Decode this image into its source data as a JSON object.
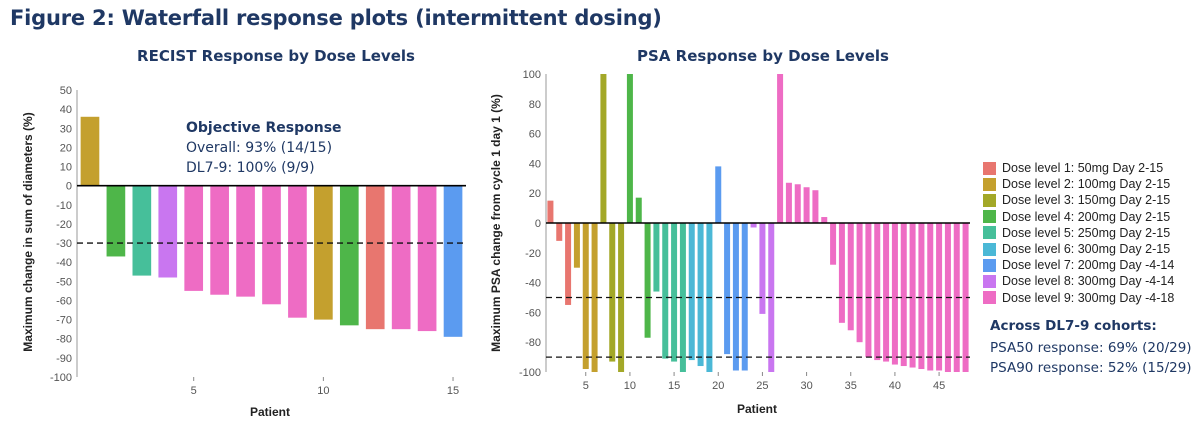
{
  "figure_title": "Figure 2: Waterfall response plots (intermittent dosing)",
  "legend": {
    "entries": [
      {
        "label": "Dose level 1: 50mg Day 2-15",
        "color": "#e8766f"
      },
      {
        "label": "Dose level 2: 100mg Day 2-15",
        "color": "#c4a02e"
      },
      {
        "label": "Dose level 3: 150mg Day 2-15",
        "color": "#a3a828"
      },
      {
        "label": "Dose level 4: 200mg Day 2-15",
        "color": "#4eb649"
      },
      {
        "label": "Dose level 5: 250mg Day 2-15",
        "color": "#46bf9a"
      },
      {
        "label": "Dose level 6: 300mg Day 2-15",
        "color": "#4bb8d6"
      },
      {
        "label": "Dose level 7: 200mg Day -4-14",
        "color": "#5b9bf0"
      },
      {
        "label": "Dose level 8: 300mg Day -4-14",
        "color": "#c976f0"
      },
      {
        "label": "Dose level 9: 300mg Day -4-18",
        "color": "#ee6cc4"
      }
    ]
  },
  "recist_annotation": {
    "heading": "Objective Response",
    "line1": "Overall: 93% (14/15)",
    "line2": "DL7-9: 100% (9/9)"
  },
  "psa_annotation": {
    "heading": "Across DL7-9 cohorts:",
    "line1": "PSA50 response: 69% (20/29)",
    "line2": "PSA90 response: 52% (15/29)"
  },
  "chart_data": [
    {
      "type": "bar",
      "title": "RECIST Response by Dose Levels",
      "xlabel": "Patient",
      "ylabel": "Maximum change in sum of diameters (%)",
      "x": [
        1,
        2,
        3,
        4,
        5,
        6,
        7,
        8,
        9,
        10,
        11,
        12,
        13,
        14,
        15
      ],
      "values": [
        36,
        -37,
        -47,
        -48,
        -55,
        -57,
        -58,
        -62,
        -69,
        -70,
        -73,
        -75,
        -75,
        -76,
        -79
      ],
      "dose_levels": [
        2,
        4,
        5,
        8,
        9,
        9,
        9,
        9,
        9,
        2,
        4,
        1,
        9,
        9,
        7
      ],
      "ylim": [
        -100,
        50
      ],
      "yticks": [
        50,
        40,
        30,
        20,
        10,
        0,
        -10,
        -20,
        -30,
        -40,
        -50,
        -60,
        -70,
        -80,
        -90,
        -100
      ],
      "xticks": [
        5,
        10,
        15
      ],
      "reference_lines": [
        -30
      ],
      "grid": false
    },
    {
      "type": "bar",
      "title": "PSA Response by Dose Levels",
      "xlabel": "Patient",
      "ylabel": "Maximum PSA change from cycle 1 day 1 (%)",
      "x": [
        1,
        2,
        3,
        4,
        5,
        6,
        7,
        8,
        9,
        10,
        11,
        12,
        13,
        14,
        15,
        16,
        17,
        18,
        19,
        20,
        21,
        22,
        23,
        24,
        25,
        26,
        27,
        28,
        29,
        30,
        31,
        32,
        33,
        34,
        35,
        36,
        37,
        38,
        39,
        40,
        41,
        42,
        43,
        44,
        45,
        46,
        47,
        48
      ],
      "values": [
        15,
        -12,
        -55,
        -30,
        -98,
        -100,
        100,
        -93,
        -100,
        100,
        17,
        -77,
        -46,
        -91,
        -93,
        -100,
        -92,
        -96,
        -100,
        38,
        -88,
        -99,
        -99,
        -3,
        -61,
        -100,
        100,
        27,
        26,
        24,
        22,
        4,
        -28,
        -67,
        -72,
        -80,
        -90,
        -92,
        -93,
        -95,
        -96,
        -97,
        -98,
        -99,
        -99,
        -100,
        -100,
        -100
      ],
      "dose_levels": [
        1,
        1,
        1,
        2,
        2,
        2,
        3,
        3,
        3,
        4,
        4,
        4,
        5,
        5,
        5,
        5,
        6,
        6,
        6,
        7,
        7,
        7,
        7,
        8,
        8,
        8,
        9,
        9,
        9,
        9,
        9,
        9,
        9,
        9,
        9,
        9,
        9,
        9,
        9,
        9,
        9,
        9,
        9,
        9,
        9,
        9,
        9,
        9
      ],
      "ylim": [
        -100,
        100
      ],
      "yticks": [
        100,
        80,
        60,
        40,
        20,
        0,
        -20,
        -40,
        -60,
        -80,
        -100
      ],
      "xticks": [
        5,
        10,
        15,
        20,
        25,
        30,
        35,
        40,
        45
      ],
      "reference_lines": [
        -50,
        -90
      ],
      "grid": false
    }
  ]
}
